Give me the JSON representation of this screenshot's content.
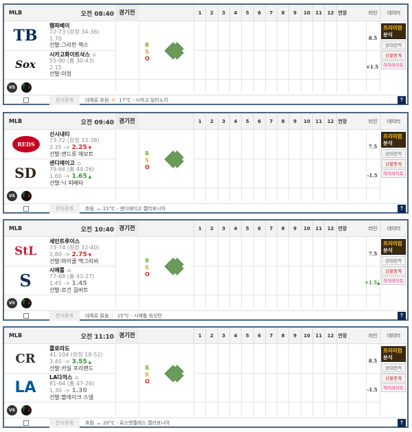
{
  "columns": {
    "status": "경기전",
    "innings": [
      "1",
      "2",
      "3",
      "4",
      "5",
      "6",
      "7",
      "8",
      "9",
      "10",
      "11",
      "12",
      "연장"
    ],
    "line": "라인",
    "data": "데이터"
  },
  "labels": {
    "premium_1": "프리미엄",
    "premium_2": "분석",
    "head_to_head": "상대전적",
    "live": "상황중계",
    "highlight": "하이라이트",
    "message": "문자중계",
    "vs": "VS",
    "bso": [
      "B",
      "S",
      "O"
    ]
  },
  "colors": {
    "ball": "#7cb82f",
    "strike": "#f39a1e",
    "out": "#e02020",
    "up": "#2a9a2a",
    "down": "#e02020",
    "premium_bg": "#3a2a10",
    "header_border": "#4a6585"
  },
  "games": [
    {
      "league": "MLB",
      "time": "오전 08:40",
      "line_total": "8.5",
      "line_handicap": "+1.5",
      "handicap_trend": "",
      "weather": "대체로 흐림",
      "weather_icon": "partly-cloudy-icon",
      "temp_loc": "17°C - 시카고 일리노이",
      "teams": [
        {
          "name": "탬파베이",
          "logo": "TB",
          "record": "72-73 (원정 34-36)",
          "odds_old": "",
          "odds": "1.70",
          "trend": "",
          "pitcher": "선발:그리핀 잭스",
          "home": false
        },
        {
          "name": "시카고화이트삭스",
          "logo": "Sox",
          "record": "55-90 (홈 30-43)",
          "odds_old": "",
          "odds": "2.15",
          "trend": "",
          "pitcher": "선발:미정",
          "home": true
        }
      ]
    },
    {
      "league": "MLB",
      "time": "오전 09:40",
      "line_total": "7.5",
      "line_handicap": "-1.5",
      "handicap_trend": "",
      "weather": "흐림",
      "weather_icon": "cloud-icon",
      "temp_loc": "21°C - 샌디에이고 캘리포니아",
      "teams": [
        {
          "name": "신시내티",
          "logo": "REDS",
          "record": "73-72 (원정 33-38)",
          "odds_old": "2.35 ->",
          "odds": "2.25",
          "trend": "down",
          "pitcher": "선발:앤드류 애보트",
          "home": false
        },
        {
          "name": "샌디에이고",
          "logo": "SD",
          "record": "79-66 (홈 44-26)",
          "odds_old": "1.60 ->",
          "odds": "1.65",
          "trend": "up",
          "pitcher": "선발:닉 피베타",
          "home": true
        }
      ]
    },
    {
      "league": "MLB",
      "time": "오전 10:40",
      "line_total": "7.5",
      "line_handicap": "+1.5",
      "handicap_trend": "up",
      "weather": "대체로 맑음",
      "weather_icon": "moon-icon",
      "temp_loc": "15°C - 시애틀 워싱턴",
      "teams": [
        {
          "name": "세인트루이스",
          "logo": "StL",
          "record": "73-74 (원정 32-40)",
          "odds_old": "2.80 ->",
          "odds": "2.75",
          "trend": "down",
          "pitcher": "선발:마이클 맥그리비",
          "home": false
        },
        {
          "name": "시애틀",
          "logo": "S",
          "record": "77-68 (홈 43-27)",
          "odds_old": "1.45 ->",
          "odds": "1.45",
          "trend": "same",
          "pitcher": "선발:로건 길버트",
          "home": true
        }
      ]
    },
    {
      "league": "MLB",
      "time": "오전 11:10",
      "line_total": "8.5",
      "line_handicap": "-1.5",
      "handicap_trend": "",
      "weather": "흐림",
      "weather_icon": "cloud-icon",
      "temp_loc": "20°C - 로스앤젤레스 캘리포니아",
      "teams": [
        {
          "name": "콜로라도",
          "logo": "CR",
          "record": "41-104 (원정 18-52)",
          "odds_old": "3.45 ->",
          "odds": "3.55",
          "trend": "up",
          "pitcher": "선발:카일 프리랜드",
          "home": false
        },
        {
          "name": "LA다저스",
          "logo": "LA",
          "record": "81-64 (홈 47-26)",
          "odds_old": "1.30 ->",
          "odds": "1.30",
          "trend": "same",
          "pitcher": "선발:블레이크 스넬",
          "home": true
        }
      ]
    }
  ]
}
